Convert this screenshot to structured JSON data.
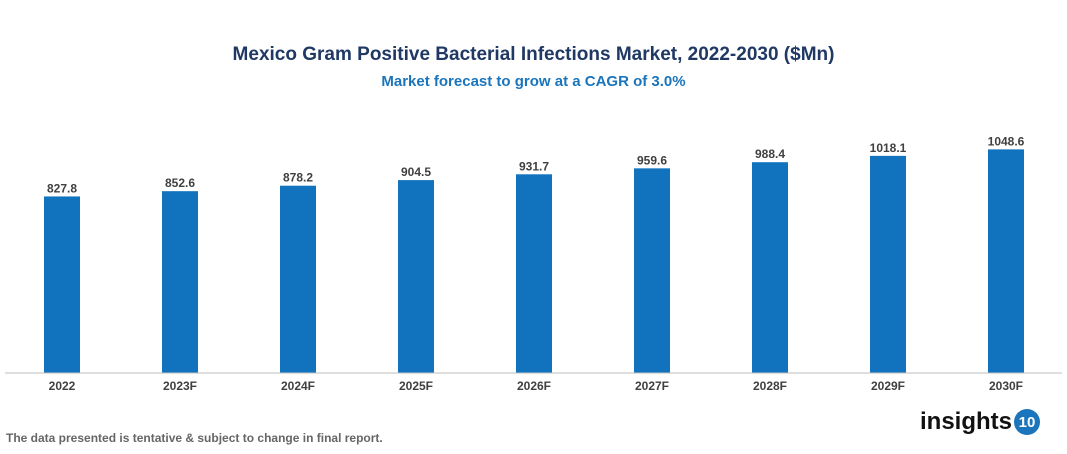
{
  "chart_data": {
    "type": "bar",
    "title": "Mexico Gram Positive Bacterial Infections Market, 2022-2030 ($Mn)",
    "subtitle": "Market forecast to grow at a CAGR of 3.0%",
    "categories": [
      "2022",
      "2023F",
      "2024F",
      "2025F",
      "2026F",
      "2027F",
      "2028F",
      "2029F",
      "2030F"
    ],
    "values": [
      827.8,
      852.6,
      878.2,
      904.5,
      931.7,
      959.6,
      988.4,
      1018.1,
      1048.6
    ],
    "labels": [
      "827.8",
      "852.6",
      "878.2",
      "904.5",
      "931.7",
      "959.6",
      "988.4",
      "1018.1",
      "1048.6"
    ],
    "xlabel": "",
    "ylabel": "",
    "ylim": [
      0,
      1055
    ],
    "grid": false,
    "bar_color": "#1173bd"
  },
  "footer": {
    "note": "The data presented is tentative & subject to change in final report."
  },
  "logo": {
    "text": "insights",
    "badge": "10"
  }
}
